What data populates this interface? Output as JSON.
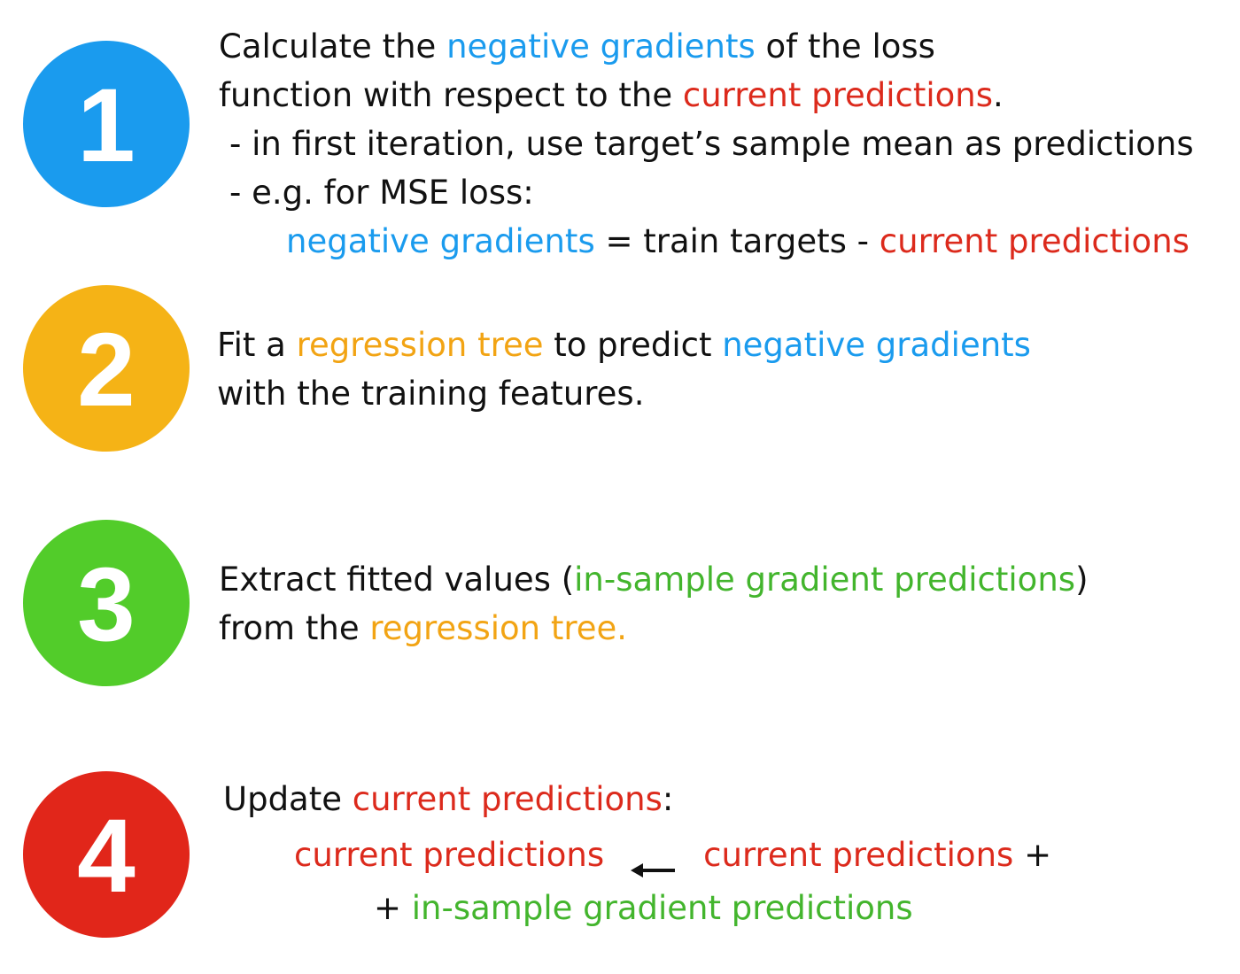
{
  "steps": [
    {
      "number": "1",
      "color": "#1a9bee",
      "lines": [
        [
          "Calculate the ",
          "negative gradients",
          " of the loss"
        ],
        [
          "function with respect to the ",
          "current predictions",
          "."
        ],
        [
          "- in first iteration, use target’s sample mean as predictions"
        ],
        [
          "- e.g. for MSE loss:"
        ],
        [
          "negative gradients",
          " = train targets - ",
          "current predictions"
        ]
      ]
    },
    {
      "number": "2",
      "color": "#f5b316",
      "lines": [
        [
          "Fit a ",
          "regression tree",
          " to predict ",
          "negative gradients"
        ],
        [
          "with the training features."
        ]
      ]
    },
    {
      "number": "3",
      "color": "#52cc2a",
      "lines": [
        [
          "Extract fitted values (",
          "in-sample gradient predictions",
          ")"
        ],
        [
          "from the ",
          "regression tree."
        ]
      ]
    },
    {
      "number": "4",
      "color": "#e1261a",
      "lines": [
        [
          "Update ",
          "current predictions",
          ":"
        ],
        [
          "current predictions",
          "current predictions",
          " +"
        ],
        [
          "+ ",
          "in-sample gradient predictions"
        ]
      ]
    }
  ],
  "term_colors": {
    "negative_gradients": "#1a9bee",
    "current_predictions": "#dc2a1c",
    "regression_tree": "#f2a414",
    "in_sample_gradient_predictions": "#43b52d"
  },
  "icons": {
    "update_arrow": "left-arrow-icon"
  }
}
